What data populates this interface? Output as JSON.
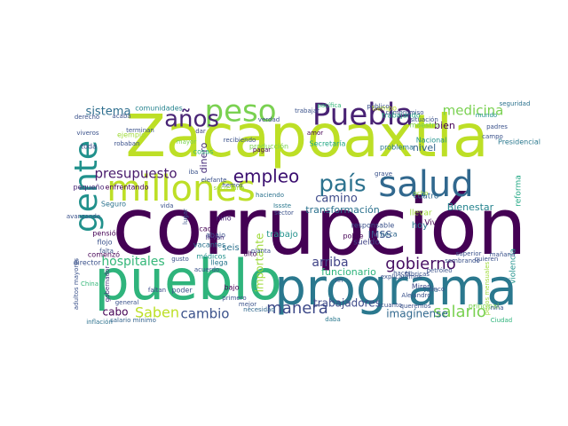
{
  "word_cloud": {
    "background": "#ffffff",
    "words": [
      {
        "text": "corrupción",
        "color": "#440154"
      },
      {
        "text": "Zacapoaxtla",
        "color": "#bddf26"
      },
      {
        "text": "pueblo",
        "color": "#2fb47c"
      },
      {
        "text": "programa",
        "color": "#2a788e"
      },
      {
        "text": "salud",
        "color": "#31688e"
      },
      {
        "text": "millones",
        "color": "#bddf26"
      },
      {
        "text": "Puebla",
        "color": "#482173"
      },
      {
        "text": "peso",
        "color": "#7ad151"
      },
      {
        "text": "años",
        "color": "#482475"
      },
      {
        "text": "gente",
        "color": "#21918c"
      },
      {
        "text": "país",
        "color": "#2c728e"
      },
      {
        "text": "empleo",
        "color": "#3b0f70"
      },
      {
        "text": "gobierno",
        "color": "#471063"
      },
      {
        "text": "salario",
        "color": "#7ad151"
      },
      {
        "text": "manera",
        "color": "#3e4a89"
      },
      {
        "text": "presupuesto",
        "color": "#481a6c"
      },
      {
        "text": "cambio",
        "color": "#3b528b"
      },
      {
        "text": "hospitales",
        "color": "#35b779"
      },
      {
        "text": "Saben",
        "color": "#bddf26"
      },
      {
        "text": "medicina",
        "color": "#7ad151"
      },
      {
        "text": "sistema",
        "color": "#2e6e8e"
      },
      {
        "text": "arriba",
        "color": "#414487"
      },
      {
        "text": "trabajadores",
        "color": "#3e4a89"
      },
      {
        "text": "imagínense",
        "color": "#31688e"
      },
      {
        "text": "camino",
        "color": "#3e4a89"
      },
      {
        "text": "transformación",
        "color": "#2c728e"
      },
      {
        "text": "funcionario",
        "color": "#2fb47c"
      },
      {
        "text": "cabo",
        "color": "#440154"
      },
      {
        "text": "importante",
        "color": "#9fda3a"
      },
      {
        "text": "IMSS",
        "color": "#3b528b"
      },
      {
        "text": "bien",
        "color": "#440154"
      },
      {
        "text": "nivel",
        "color": "#33638d"
      },
      {
        "text": "hoy",
        "color": "#2a788e"
      },
      {
        "text": "Bienestar",
        "color": "#25838e"
      },
      {
        "text": "dinero",
        "color": "#472d7b"
      },
      {
        "text": "mundo",
        "color": "#21918c"
      },
      {
        "text": "seguridad",
        "color": "#2c728e"
      },
      {
        "text": "comunidades",
        "color": "#25838e"
      },
      {
        "text": "tiempo",
        "color": "#bddf26"
      },
      {
        "text": "pacífica",
        "color": "#35b779"
      },
      {
        "text": "trabajando",
        "color": "#22a884"
      },
      {
        "text": "maestro",
        "color": "#7ad151"
      },
      {
        "text": "Nacional",
        "color": "#21918c"
      },
      {
        "text": "Presidencial",
        "color": "#2a788e"
      },
      {
        "text": "trabajo",
        "color": "#21918c"
      },
      {
        "text": "sueldo",
        "color": "#414487"
      },
      {
        "text": "seis",
        "color": "#2c728e"
      },
      {
        "text": "cuatro",
        "color": "#31688e"
      },
      {
        "text": "Viva",
        "color": "#440154"
      },
      {
        "text": "reforma",
        "color": "#22a884"
      },
      {
        "text": "violencia",
        "color": "#21918c"
      },
      {
        "text": "llevar",
        "color": "#9fda3a"
      },
      {
        "text": "principal",
        "color": "#7ad151"
      },
      {
        "text": "problema",
        "color": "#2a788e"
      },
      {
        "text": "Secretaría",
        "color": "#22a884"
      },
      {
        "text": "producción",
        "color": "#7ad151"
      },
      {
        "text": "pequeño",
        "color": "#482475"
      },
      {
        "text": "enfrentando",
        "color": "#440154"
      },
      {
        "text": "Seguro",
        "color": "#2c728e"
      },
      {
        "text": "niño",
        "color": "#482475"
      },
      {
        "text": "pensión",
        "color": "#440154"
      },
      {
        "text": "flojo",
        "color": "#3b528b"
      },
      {
        "text": "comenzó",
        "color": "#440154"
      },
      {
        "text": "director",
        "color": "#3b528b"
      },
      {
        "text": "adultos mayores",
        "color": "#3b528b"
      },
      {
        "text": "inflación",
        "color": "#2c728e"
      },
      {
        "text": "China",
        "color": "#35b779"
      },
      {
        "text": "gobernador",
        "color": "#472d7b"
      },
      {
        "text": "poder",
        "color": "#3b528b"
      },
      {
        "text": "bajo",
        "color": "#440154"
      },
      {
        "text": "necesidad",
        "color": "#31688e"
      },
      {
        "text": "salario mínimo",
        "color": "#33638d"
      },
      {
        "text": "daba",
        "color": "#2a788e"
      },
      {
        "text": "Miren",
        "color": "#3e4a89"
      },
      {
        "text": "vaya",
        "color": "#31688e"
      },
      {
        "text": "niña",
        "color": "#3b528b"
      },
      {
        "text": "Ciudad",
        "color": "#2fb47c"
      },
      {
        "text": "cada",
        "color": "#440154"
      },
      {
        "text": "vacantes",
        "color": "#2c728e"
      },
      {
        "text": "abajo",
        "color": "#3b528b"
      },
      {
        "text": "médicos",
        "color": "#21918c"
      },
      {
        "text": "llega",
        "color": "#2a788e"
      },
      {
        "text": "alto",
        "color": "#440154"
      },
      {
        "text": "pobre",
        "color": "#440154"
      },
      {
        "text": "responsable",
        "color": "#3b528b"
      },
      {
        "text": "beca",
        "color": "#31688e"
      },
      {
        "text": "faltan",
        "color": "#3e4a89"
      },
      {
        "text": "Issste",
        "color": "#2a788e"
      },
      {
        "text": "llevan",
        "color": "#472d7b"
      },
      {
        "text": "iba",
        "color": "#3b528b"
      },
      {
        "text": "toda",
        "color": "#3e4a89"
      },
      {
        "text": "robaban",
        "color": "#3b528b"
      },
      {
        "text": "ejemplo",
        "color": "#9fda3a"
      },
      {
        "text": "cosas",
        "color": "#2fb47c"
      },
      {
        "text": "mayor",
        "color": "#7ad151"
      },
      {
        "text": "dar",
        "color": "#414487"
      },
      {
        "text": "derecho",
        "color": "#3b528b"
      },
      {
        "text": "acaba",
        "color": "#3b528b"
      },
      {
        "text": "viveros",
        "color": "#3b528b"
      },
      {
        "text": "terminan",
        "color": "#3b528b"
      },
      {
        "text": "elefante",
        "color": "#3b528b"
      },
      {
        "text": "hemos",
        "color": "#3b528b"
      },
      {
        "text": "verdad",
        "color": "#3b528b"
      },
      {
        "text": "pagar",
        "color": "#440154"
      },
      {
        "text": "amor",
        "color": "#440154"
      },
      {
        "text": "trabajar",
        "color": "#3b528b"
      },
      {
        "text": "haciendo",
        "color": "#2c728e"
      },
      {
        "text": "secretaria",
        "color": "#9fda3a"
      },
      {
        "text": "avanzando",
        "color": "#3b528b"
      },
      {
        "text": "sembrando",
        "color": "#3b528b"
      },
      {
        "text": "explicaremos",
        "color": "#3b528b"
      },
      {
        "text": "campo",
        "color": "#3b528b"
      },
      {
        "text": "padres",
        "color": "#3b528b"
      },
      {
        "text": "compromiso",
        "color": "#3b528b"
      },
      {
        "text": "situación",
        "color": "#3b528b"
      },
      {
        "text": "público",
        "color": "#3b528b"
      },
      {
        "text": "hacer",
        "color": "#3b528b"
      },
      {
        "text": "queremos",
        "color": "#3b528b"
      },
      {
        "text": "cuanto",
        "color": "#3b528b"
      },
      {
        "text": "quieren",
        "color": "#3b528b"
      },
      {
        "text": "mañana",
        "color": "#3b528b"
      },
      {
        "text": "superior",
        "color": "#3b528b"
      },
      {
        "text": "petróleo",
        "color": "#3b528b"
      },
      {
        "text": "cinco",
        "color": "#3b528b"
      },
      {
        "text": "fábricas",
        "color": "#3b528b"
      },
      {
        "text": "falta",
        "color": "#3b528b"
      },
      {
        "text": "gusto",
        "color": "#3b528b"
      },
      {
        "text": "acuerdo",
        "color": "#3b528b"
      },
      {
        "text": "primero",
        "color": "#3b528b"
      },
      {
        "text": "mejor",
        "color": "#3b528b"
      },
      {
        "text": "general",
        "color": "#3b528b"
      },
      {
        "text": "recibiendo",
        "color": "#3b528b"
      },
      {
        "text": "pesos mensuales",
        "color": "#9fda3a"
      },
      {
        "text": "Alejandro",
        "color": "#3b528b"
      },
      {
        "text": "ocho",
        "color": "#9fda3a"
      },
      {
        "text": "planta",
        "color": "#3b528b"
      },
      {
        "text": "vida",
        "color": "#3b528b"
      },
      {
        "text": "fin",
        "color": "#3b528b"
      },
      {
        "text": "lugar",
        "color": "#3b528b"
      },
      {
        "text": "grave",
        "color": "#3b528b"
      },
      {
        "text": "sector",
        "color": "#3b528b"
      }
    ]
  }
}
